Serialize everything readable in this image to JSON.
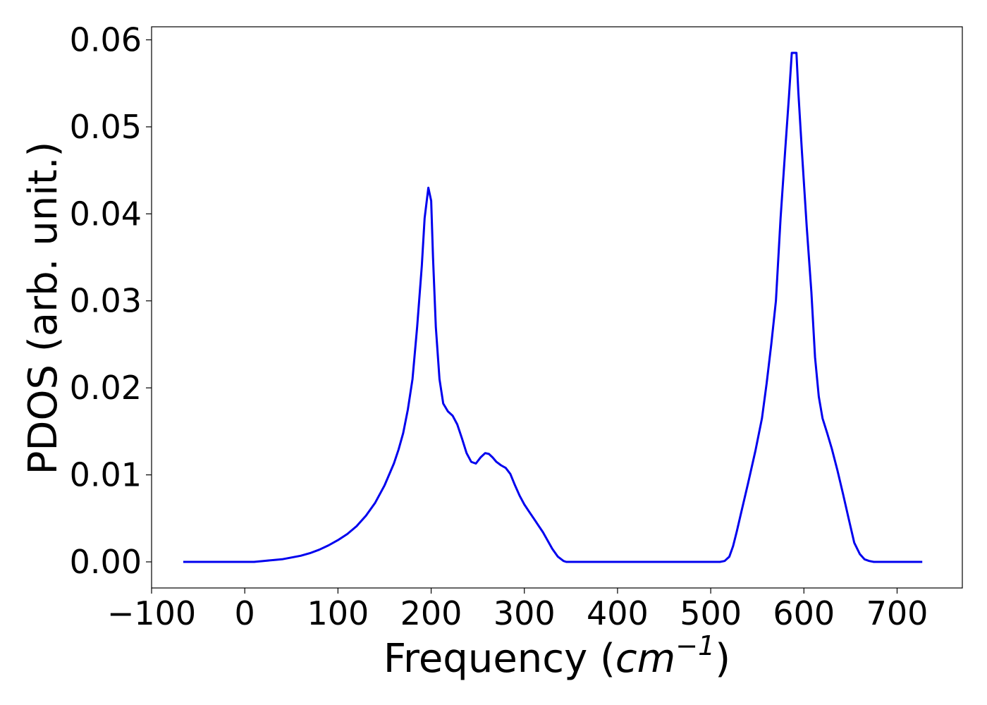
{
  "chart_data": {
    "type": "line",
    "title": "",
    "xlabel": {
      "prefix": "Frequency (",
      "unit_base": "cm",
      "unit_exponent": "−1",
      "suffix": ")"
    },
    "ylabel": "PDOS (arb. unit.)",
    "xlim": [
      -100,
      770
    ],
    "ylim": [
      -0.003,
      0.0615
    ],
    "xticks": [
      -100,
      0,
      100,
      200,
      300,
      400,
      500,
      600,
      700
    ],
    "xtick_labels": [
      "−100",
      "0",
      "100",
      "200",
      "300",
      "400",
      "500",
      "600",
      "700"
    ],
    "yticks": [
      0.0,
      0.01,
      0.02,
      0.03,
      0.04,
      0.05,
      0.06
    ],
    "ytick_labels": [
      "0.00",
      "0.01",
      "0.02",
      "0.03",
      "0.04",
      "0.05",
      "0.06"
    ],
    "grid": false,
    "legend": false,
    "series": [
      {
        "color": "#0000ee",
        "x": [
          -66,
          -40,
          -20,
          0,
          10,
          20,
          30,
          40,
          50,
          60,
          70,
          80,
          90,
          100,
          110,
          120,
          130,
          140,
          150,
          160,
          165,
          170,
          175,
          180,
          185,
          190,
          193,
          197,
          200,
          202,
          205,
          209,
          213,
          218,
          223,
          228,
          233,
          238,
          243,
          248,
          253,
          258,
          262,
          266,
          270,
          275,
          280,
          285,
          290,
          295,
          300,
          305,
          310,
          320,
          330,
          336,
          342,
          345,
          350,
          360,
          380,
          400,
          450,
          500,
          510,
          515,
          520,
          524,
          528,
          533,
          540,
          548,
          555,
          560,
          565,
          570,
          575,
          580,
          584,
          587,
          590,
          592,
          594,
          598,
          603,
          608,
          612,
          616,
          620,
          625,
          630,
          636,
          642,
          648,
          654,
          660,
          665,
          670,
          675,
          680,
          700,
          727
        ],
        "y": [
          0.0,
          0.0,
          0.0,
          0.0,
          0.0,
          0.0001,
          0.0002,
          0.0003,
          0.0005,
          0.0007,
          0.001,
          0.0014,
          0.0019,
          0.0025,
          0.0032,
          0.0041,
          0.0053,
          0.0068,
          0.0088,
          0.0113,
          0.0129,
          0.0148,
          0.0175,
          0.021,
          0.027,
          0.034,
          0.0395,
          0.043,
          0.0415,
          0.035,
          0.027,
          0.021,
          0.0182,
          0.0173,
          0.0168,
          0.0158,
          0.0142,
          0.0125,
          0.0115,
          0.0113,
          0.012,
          0.0125,
          0.0124,
          0.012,
          0.0115,
          0.0111,
          0.0108,
          0.0101,
          0.0088,
          0.0076,
          0.0066,
          0.0058,
          0.005,
          0.0034,
          0.0015,
          0.0006,
          0.0001,
          0.0,
          0.0,
          0.0,
          0.0,
          0.0,
          0.0,
          0.0,
          0.0,
          0.0001,
          0.0006,
          0.0018,
          0.0035,
          0.0058,
          0.009,
          0.0128,
          0.0165,
          0.0205,
          0.025,
          0.03,
          0.0395,
          0.0475,
          0.0535,
          0.0585,
          0.0585,
          0.0585,
          0.054,
          0.047,
          0.0385,
          0.031,
          0.0235,
          0.019,
          0.0165,
          0.0148,
          0.013,
          0.0105,
          0.0078,
          0.005,
          0.0022,
          0.0009,
          0.0003,
          0.0001,
          0.0,
          0.0,
          0.0,
          0.0
        ]
      }
    ]
  }
}
